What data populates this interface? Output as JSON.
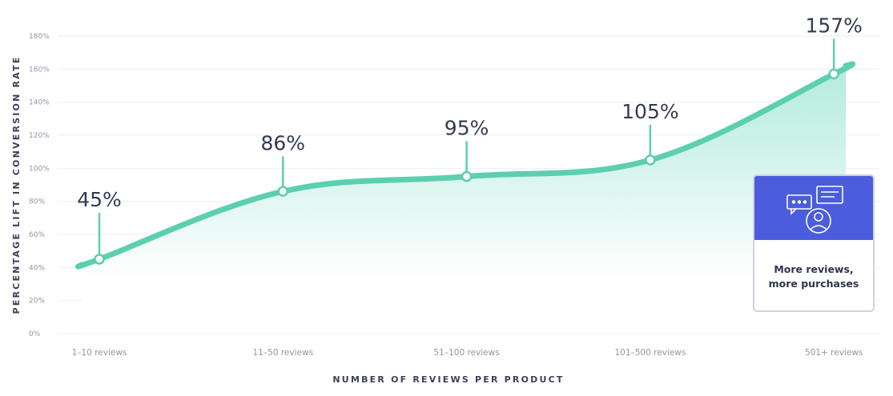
{
  "chart_data": {
    "type": "area",
    "categories": [
      "1–10 reviews",
      "11–50 reviews",
      "51–100 reviews",
      "101–500 reviews",
      "501+ reviews"
    ],
    "values": [
      45,
      86,
      95,
      105,
      157
    ],
    "data_labels": [
      "45%",
      "86%",
      "95%",
      "105%",
      "157%"
    ],
    "title": "",
    "xlabel": "NUMBER OF REVIEWS PER PRODUCT",
    "ylabel": "PERCENTAGE LIFT IN CONVERSION RATE",
    "ylim": [
      0,
      180
    ],
    "yticks": [
      "0%",
      "20%",
      "40%",
      "60%",
      "80%",
      "100%",
      "120%",
      "140%",
      "160%",
      "180%"
    ],
    "grid": true,
    "colors": {
      "line": "#5ccfb0",
      "area_top": "#aeeadb",
      "area_bottom": "#ffffff",
      "text": "#343b52"
    }
  },
  "callout": {
    "line1": "More reviews,",
    "line2": "more purchases",
    "icon": "reviewer-chat-icon",
    "header_color": "#4b5ddc"
  }
}
